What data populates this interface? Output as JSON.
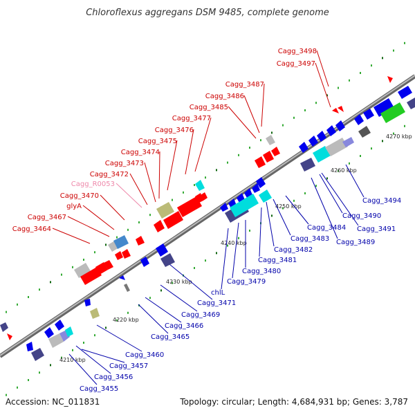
{
  "title": "Chloroflexus aggregans DSM 9485, complete genome",
  "footer": {
    "accession": "Accession: NC_011831",
    "summary": "Topology: circular; Length: 4,684,931 bp; Genes: 3,787"
  },
  "colors": {
    "forward_label": "#cc0000",
    "reverse_label": "#0000aa",
    "rna_label": "#ee88aa",
    "forward_gene": "#ff0000",
    "reverse_gene": "#0000ee",
    "grey_gene": "#bbbbbb",
    "cyan_gene": "#00dddd",
    "green_gene": "#22cc22",
    "khaki_gene": "#bbbb77",
    "slate_gene": "#444488",
    "backbone": "#888888"
  },
  "scale_ticks": [
    "4210 kbp",
    "4220 kbp",
    "4230 kbp",
    "4240 kbp",
    "4250 kbp",
    "4260 kbp",
    "4270 kbp"
  ],
  "forward_labels": [
    "Cagg_3464",
    "Cagg_3467",
    "glyA",
    "Cagg_3470",
    "Cagg_R0053",
    "Cagg_3472",
    "Cagg_3473",
    "Cagg_3474",
    "Cagg_3475",
    "Cagg_3476",
    "Cagg_3477",
    "Cagg_3485",
    "Cagg_3486",
    "Cagg_3487",
    "Cagg_3497",
    "Cagg_3498"
  ],
  "reverse_labels": [
    "Cagg_3455",
    "Cagg_3456",
    "Cagg_3457",
    "Cagg_3460",
    "Cagg_3465",
    "Cagg_3466",
    "Cagg_3469",
    "Cagg_3471",
    "chlL",
    "Cagg_3479",
    "Cagg_3480",
    "Cagg_3481",
    "Cagg_3482",
    "Cagg_3483",
    "Cagg_3484",
    "Cagg_3489",
    "Cagg_3491",
    "Cagg_3490",
    "Cagg_3494"
  ]
}
